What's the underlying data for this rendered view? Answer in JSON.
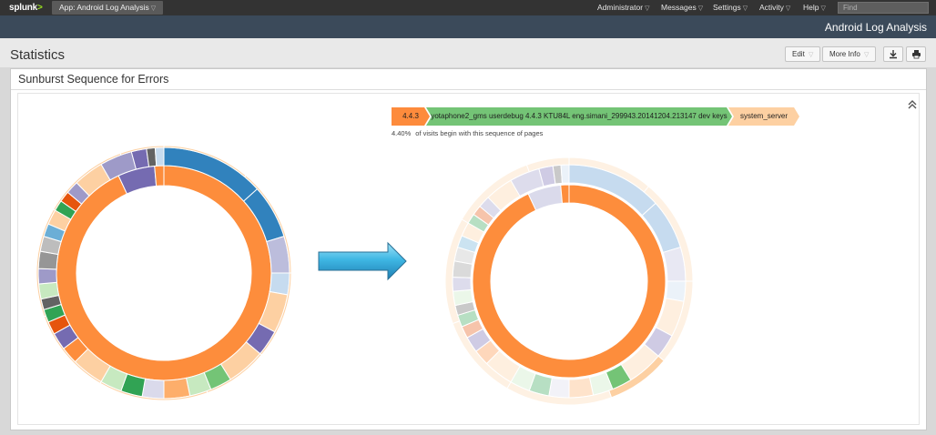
{
  "topbar": {
    "logo": "splunk",
    "app_menu": "App: Android Log Analysis",
    "nav": [
      "Administrator",
      "Messages",
      "Settings",
      "Activity",
      "Help"
    ],
    "find_placeholder": "Find"
  },
  "appbar": {
    "title": "Android Log Analysis"
  },
  "page": {
    "title": "Statistics",
    "edit_label": "Edit",
    "more_info_label": "More Info"
  },
  "panel": {
    "title": "Sunburst Sequence for Errors",
    "sequence": [
      "4.4.3",
      "yotaphone2_gms userdebug 4.4.3 KTU84L eng.simani_299943.20141204.213147 dev keys",
      "system_server"
    ],
    "percentage": "4.40%",
    "percentage_text": "of visits begin with this sequence of pages"
  },
  "colors": {
    "accent_orange": "#fd8b3c",
    "accent_green": "#74c476",
    "accent_peach": "#fdd0a2",
    "arrow_blue": "#3fa9d6"
  }
}
